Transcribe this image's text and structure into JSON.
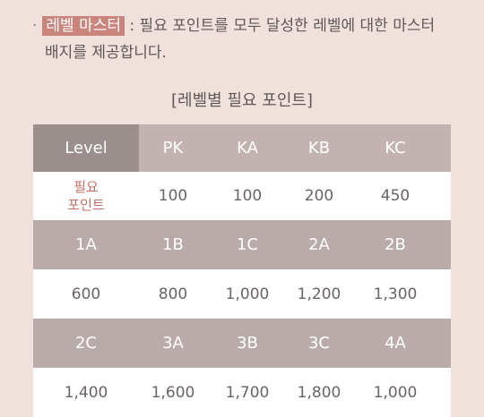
{
  "intro": {
    "bullet": "·",
    "highlight": "레벨 마스터",
    "text_line1": " : 필요 포인트를 모두 달성한 레벨에 대한 마스터",
    "text_line2": "배지를 제공합니다."
  },
  "table": {
    "title": "[레벨별 필요 포인트]",
    "header": [
      "Level",
      "PK",
      "KA",
      "KB",
      "KC"
    ],
    "rows": [
      [
        "필요\n포인트",
        "100",
        "100",
        "200",
        "450"
      ],
      [
        "1A",
        "1B",
        "1C",
        "2A",
        "2B"
      ],
      [
        "600",
        "800",
        "1,000",
        "1,200",
        "1,300"
      ],
      [
        "2C",
        "3A",
        "3B",
        "3C",
        "4A"
      ],
      [
        "1,400",
        "1,600",
        "1,700",
        "1,800",
        "1,000"
      ]
    ]
  }
}
